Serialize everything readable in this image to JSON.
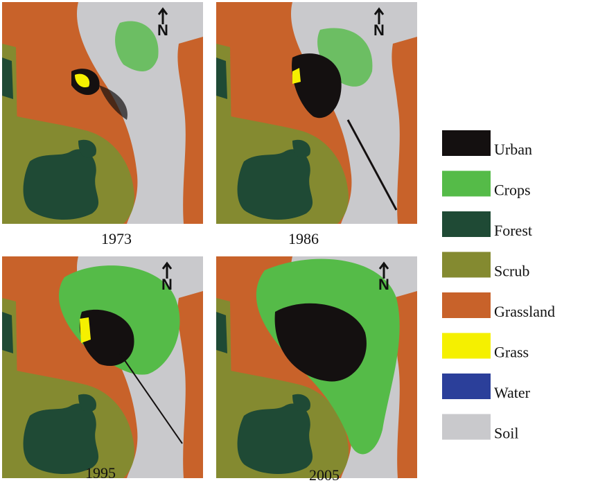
{
  "maps": [
    {
      "year": "1973"
    },
    {
      "year": "1986"
    },
    {
      "year": "1995"
    },
    {
      "year": "2005"
    }
  ],
  "legend": [
    {
      "label": "Urban",
      "color": "#141010"
    },
    {
      "label": "Crops",
      "color": "#55bb48"
    },
    {
      "label": "Forest",
      "color": "#1f4a35"
    },
    {
      "label": "Scrub",
      "color": "#848a30"
    },
    {
      "label": "Grassland",
      "color": "#c8622a"
    },
    {
      "label": "Grass",
      "color": "#f5f000"
    },
    {
      "label": "Water",
      "color": "#2b3f9a"
    },
    {
      "label": "Soil",
      "color": "#c9c9cc"
    }
  ]
}
